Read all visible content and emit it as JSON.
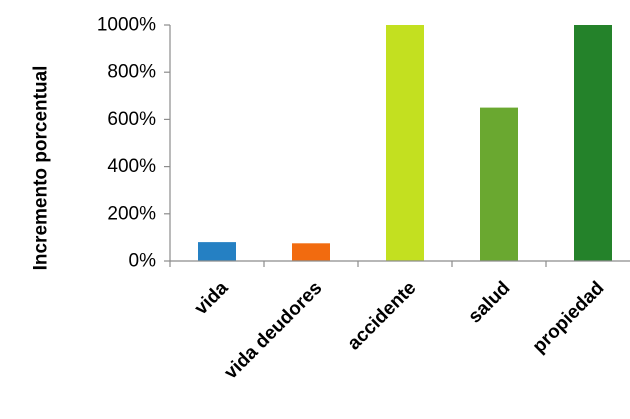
{
  "chart_data": {
    "type": "bar",
    "title": "",
    "xlabel": "",
    "ylabel": "Incremento porcentual",
    "categories": [
      "vida",
      "vida deudores",
      "accidente",
      "salud",
      "propiedad"
    ],
    "values": [
      80,
      75,
      1000,
      650,
      1000
    ],
    "colors": [
      "#2580c3",
      "#f26b0f",
      "#c3e020",
      "#6aa830",
      "#24822a"
    ],
    "ylim": [
      0,
      1000
    ],
    "yticks": [
      0,
      200,
      400,
      600,
      800,
      1000
    ],
    "ytick_labels": [
      "0%",
      "200%",
      "400%",
      "600%",
      "800%",
      "1000%"
    ],
    "grid": false,
    "legend": "none"
  }
}
